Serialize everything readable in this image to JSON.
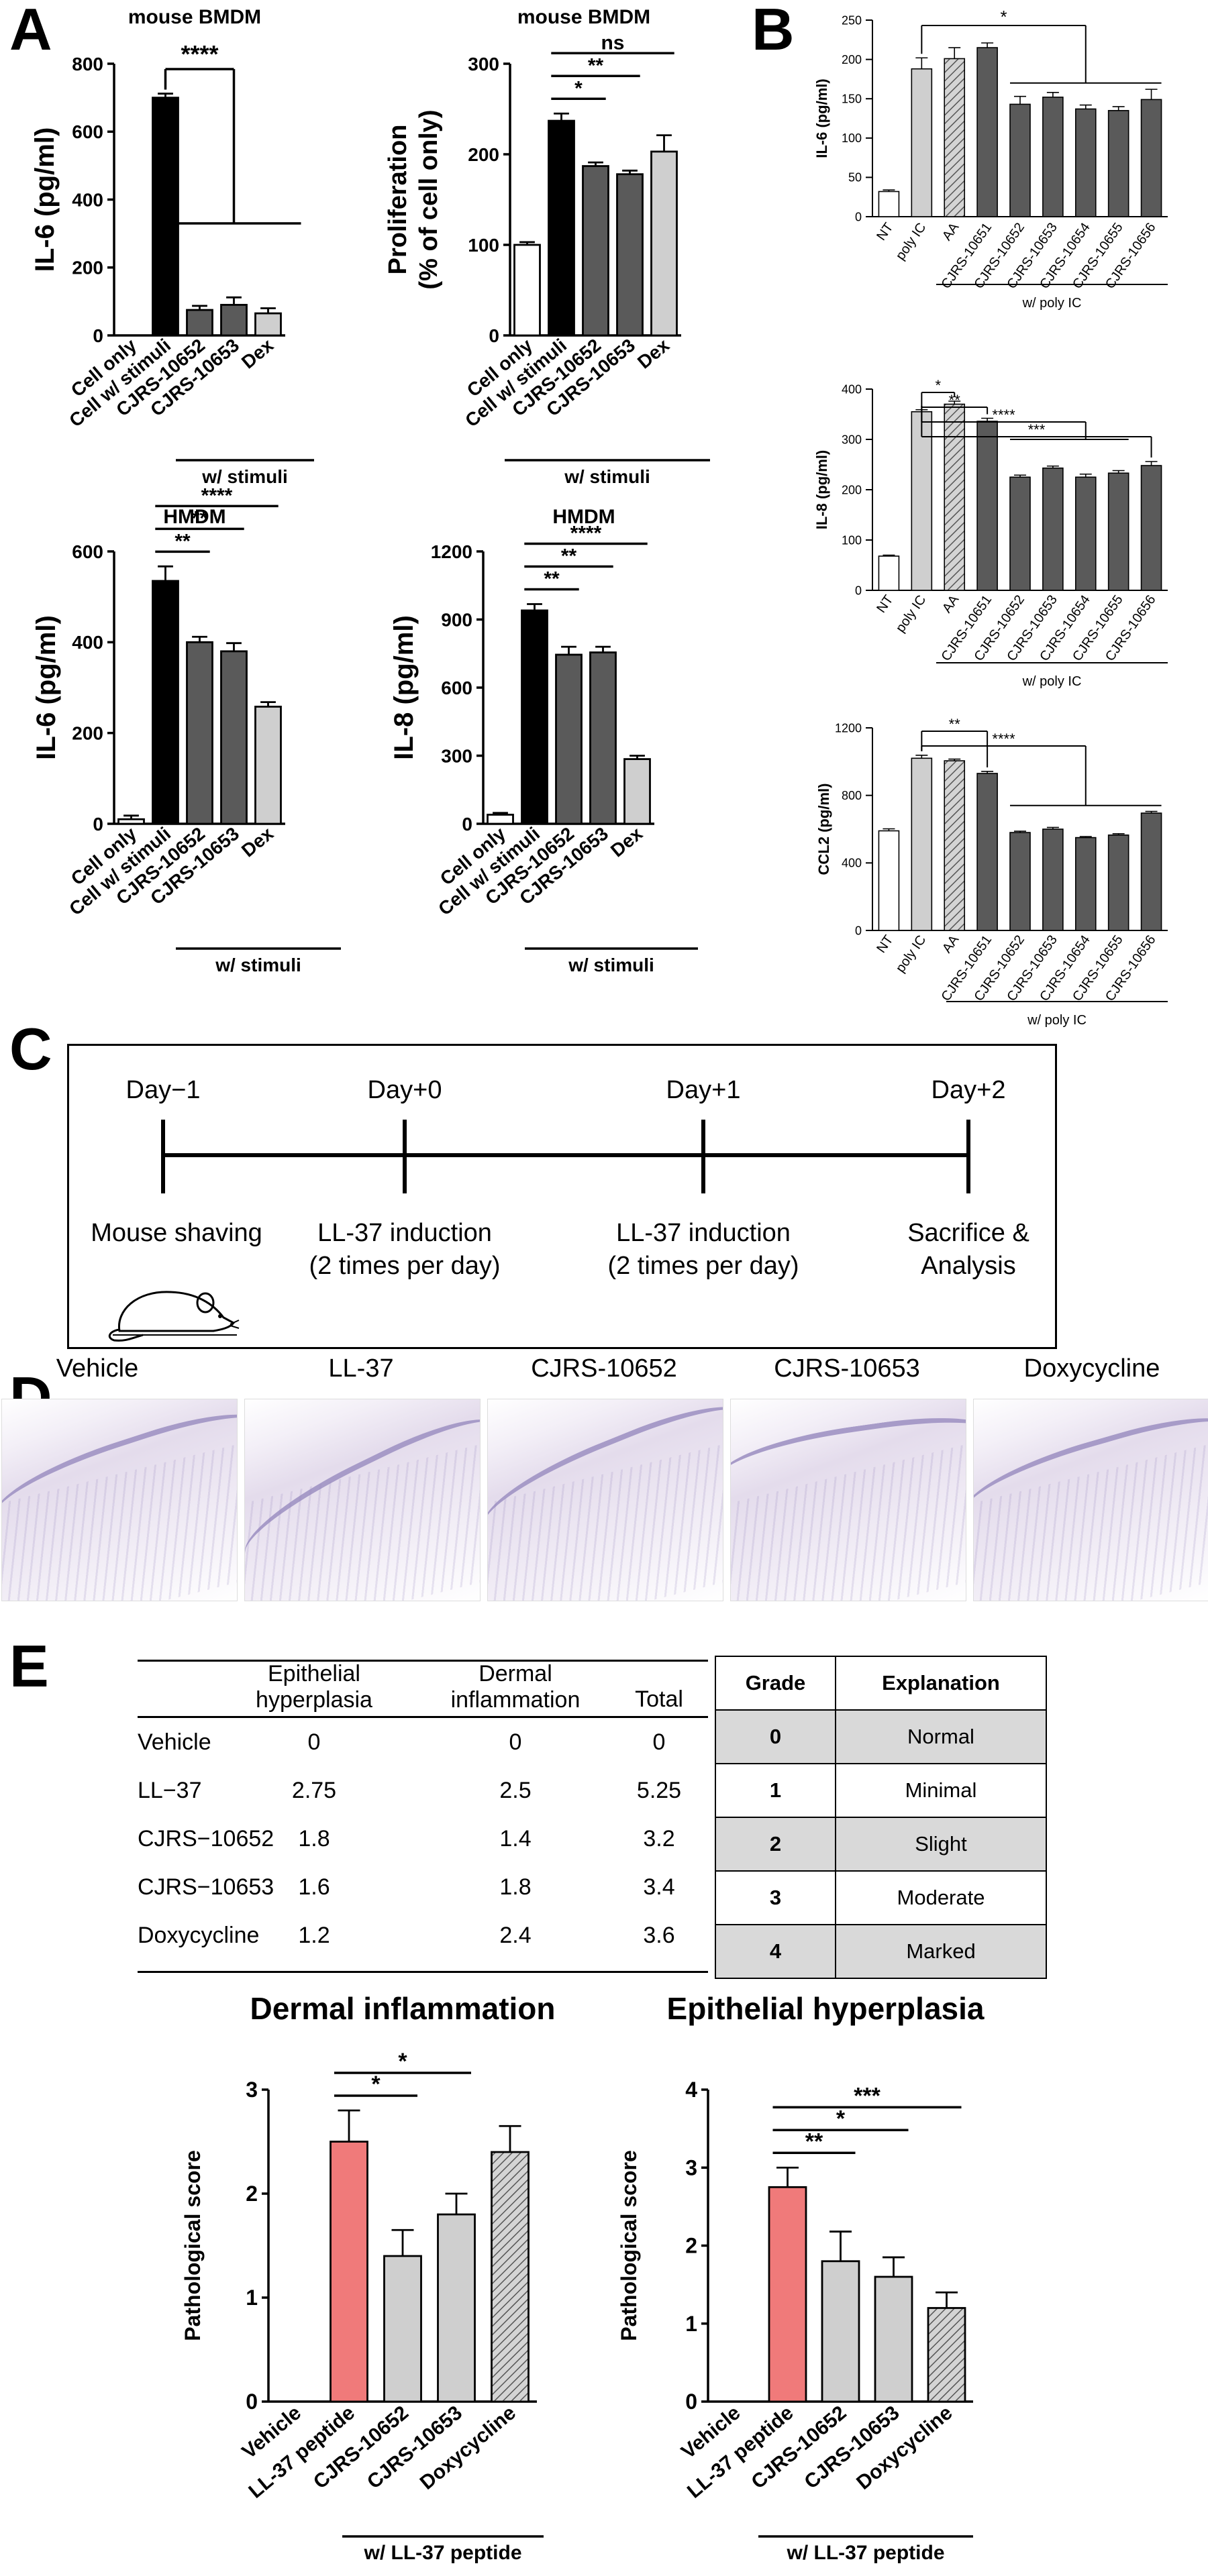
{
  "panels": {
    "a": "A",
    "b": "B",
    "c": "C",
    "d": "D",
    "e": "E"
  },
  "colors": {
    "black": "#000000",
    "dark_gray": "#5a5a5a",
    "light_gray": "#cfcfcf",
    "white": "#ffffff",
    "salmon": "#f07a7a",
    "hatch": "#bdbdbd"
  },
  "chart_data": [
    {
      "id": "a1",
      "type": "bar",
      "title": "mouse BMDM",
      "ylabel": "IL-6 (pg/ml)",
      "ylim": [
        0,
        800
      ],
      "yticks": [
        0,
        200,
        400,
        600,
        800
      ],
      "categories": [
        "Cell only",
        "Cell w/ stimuli",
        "CJRS-10652",
        "CJRS-10653",
        "Dex"
      ],
      "values": [
        0,
        700,
        75,
        90,
        65
      ],
      "errors": [
        0,
        12,
        12,
        22,
        15
      ],
      "fills": [
        "white",
        "black",
        "dark_gray",
        "dark_gray",
        "light_gray"
      ],
      "group_label": "w/ stimuli",
      "significance": [
        {
          "label": "****",
          "from": 1,
          "to": [
            2,
            4
          ]
        }
      ]
    },
    {
      "id": "a2",
      "type": "bar",
      "title": "mouse BMDM",
      "ylabel": "Proliferation (% of cell only)",
      "ylabel_lines": [
        "Proliferation",
        "(% of cell only)"
      ],
      "ylim": [
        0,
        300
      ],
      "yticks": [
        0,
        100,
        200,
        300
      ],
      "categories": [
        "Cell only",
        "Cell w/ stimuli",
        "CJRS-10652",
        "CJRS-10653",
        "Dex"
      ],
      "values": [
        100,
        237,
        187,
        178,
        203
      ],
      "errors": [
        3,
        8,
        4,
        4,
        18
      ],
      "fills": [
        "white",
        "black",
        "dark_gray",
        "dark_gray",
        "light_gray"
      ],
      "group_label": "w/ stimuli",
      "significance": [
        {
          "label": "*",
          "from": 1,
          "to": 2
        },
        {
          "label": "**",
          "from": 1,
          "to": 3
        },
        {
          "label": "ns",
          "from": 1,
          "to": 4
        }
      ]
    },
    {
      "id": "a3",
      "type": "bar",
      "title": "HMDM",
      "ylabel": "IL-6 (pg/ml)",
      "ylim": [
        0,
        600
      ],
      "yticks": [
        0,
        200,
        400,
        600
      ],
      "categories": [
        "Cell only",
        "Cell w/ stimuli",
        "CJRS-10652",
        "CJRS-10653",
        "Dex"
      ],
      "values": [
        10,
        535,
        400,
        380,
        258
      ],
      "errors": [
        8,
        32,
        12,
        18,
        10
      ],
      "fills": [
        "white",
        "black",
        "dark_gray",
        "dark_gray",
        "light_gray"
      ],
      "group_label": "w/ stimuli",
      "significance": [
        {
          "label": "**",
          "from": 1,
          "to": 2
        },
        {
          "label": "**",
          "from": 1,
          "to": 3
        },
        {
          "label": "****",
          "from": 1,
          "to": 4
        }
      ]
    },
    {
      "id": "a4",
      "type": "bar",
      "title": "HMDM",
      "ylabel": "IL-8 (pg/ml)",
      "ylim": [
        0,
        1200
      ],
      "yticks": [
        0,
        300,
        600,
        900,
        1200
      ],
      "categories": [
        "Cell only",
        "Cell w/ stimuli",
        "CJRS-10652",
        "CJRS-10653",
        "Dex"
      ],
      "values": [
        40,
        940,
        745,
        755,
        285
      ],
      "errors": [
        8,
        28,
        35,
        25,
        15
      ],
      "fills": [
        "white",
        "black",
        "dark_gray",
        "dark_gray",
        "light_gray"
      ],
      "group_label": "w/ stimuli",
      "significance": [
        {
          "label": "**",
          "from": 1,
          "to": 2
        },
        {
          "label": "**",
          "from": 1,
          "to": 3
        },
        {
          "label": "****",
          "from": 1,
          "to": 4
        }
      ]
    },
    {
      "id": "b1",
      "type": "bar",
      "ylabel": "IL-6 (pg/ml)",
      "ylim": [
        0,
        250
      ],
      "yticks": [
        0,
        50,
        100,
        150,
        200,
        250
      ],
      "categories": [
        "NT",
        "poly IC",
        "AA",
        "CJRS-10651",
        "CJRS-10652",
        "CJRS-10653",
        "CJRS-10654",
        "CJRS-10655",
        "CJRS-10656"
      ],
      "values": [
        32,
        188,
        201,
        215,
        143,
        152,
        137,
        135,
        149
      ],
      "errors": [
        2,
        14,
        14,
        6,
        10,
        6,
        5,
        5,
        13
      ],
      "fills": [
        "white",
        "light_gray",
        "hatch",
        "dark_gray",
        "dark_gray",
        "dark_gray",
        "dark_gray",
        "dark_gray",
        "dark_gray"
      ],
      "group_label": "w/ poly IC",
      "significance": [
        {
          "label": "*",
          "from": 1,
          "to": [
            4,
            8
          ]
        }
      ]
    },
    {
      "id": "b2",
      "type": "bar",
      "ylabel": "IL-8 (pg/ml)",
      "ylim": [
        0,
        400
      ],
      "yticks": [
        0,
        100,
        200,
        300,
        400
      ],
      "categories": [
        "NT",
        "poly IC",
        "AA",
        "CJRS-10651",
        "CJRS-10652",
        "CJRS-10653",
        "CJRS-10654",
        "CJRS-10655",
        "CJRS-10656"
      ],
      "values": [
        68,
        355,
        370,
        336,
        225,
        243,
        225,
        233,
        248
      ],
      "errors": [
        2,
        4,
        6,
        6,
        4,
        4,
        6,
        5,
        8
      ],
      "fills": [
        "white",
        "light_gray",
        "hatch",
        "dark_gray",
        "dark_gray",
        "dark_gray",
        "dark_gray",
        "dark_gray",
        "dark_gray"
      ],
      "group_label": "w/ poly IC",
      "significance": [
        {
          "label": "*",
          "from": 1,
          "to": 2
        },
        {
          "label": "**",
          "from": 1,
          "to": 3
        },
        {
          "label": "****",
          "from": 1,
          "to": [
            4,
            7
          ]
        },
        {
          "label": "***",
          "from": 1,
          "to": 8
        }
      ]
    },
    {
      "id": "b3",
      "type": "bar",
      "ylabel": "CCL2 (pg/ml)",
      "ylim": [
        0,
        1200
      ],
      "yticks": [
        0,
        400,
        800,
        1200
      ],
      "categories": [
        "NT",
        "poly IC",
        "AA",
        "CJRS-10651",
        "CJRS-10652",
        "CJRS-10653",
        "CJRS-10654",
        "CJRS-10655",
        "CJRS-10656"
      ],
      "values": [
        590,
        1020,
        1005,
        930,
        580,
        600,
        550,
        565,
        695
      ],
      "errors": [
        12,
        18,
        10,
        12,
        8,
        10,
        6,
        8,
        10
      ],
      "fills": [
        "white",
        "light_gray",
        "hatch",
        "dark_gray",
        "dark_gray",
        "dark_gray",
        "dark_gray",
        "dark_gray",
        "dark_gray"
      ],
      "group_label": "w/ poly IC",
      "significance": [
        {
          "label": "**",
          "from": 1,
          "to": 3
        },
        {
          "label": "****",
          "from": 1,
          "to": [
            4,
            8
          ]
        }
      ]
    },
    {
      "id": "e1",
      "type": "bar",
      "title": "Dermal inflammation",
      "ylabel": "Pathological score",
      "ylim": [
        0,
        3
      ],
      "yticks": [
        0,
        1,
        2,
        3
      ],
      "categories": [
        "Vehicle",
        "LL-37 peptide",
        "CJRS-10652",
        "CJRS-10653",
        "Doxycycline"
      ],
      "values": [
        0,
        2.5,
        1.4,
        1.8,
        2.4
      ],
      "errors": [
        0,
        0.3,
        0.25,
        0.2,
        0.25
      ],
      "fills": [
        "white",
        "salmon",
        "light_gray",
        "light_gray",
        "hatch"
      ],
      "group_label": "w/ LL-37 peptide",
      "significance": [
        {
          "label": "*",
          "from": 1,
          "to": 2
        },
        {
          "label": "*",
          "from": 1,
          "to": 3
        }
      ]
    },
    {
      "id": "e2",
      "type": "bar",
      "title": "Epithelial hyperplasia",
      "ylabel": "Pathological score",
      "ylim": [
        0,
        4
      ],
      "yticks": [
        0,
        1,
        2,
        3,
        4
      ],
      "categories": [
        "Vehicle",
        "LL-37 peptide",
        "CJRS-10652",
        "CJRS-10653",
        "Doxycycline"
      ],
      "values": [
        0,
        2.75,
        1.8,
        1.6,
        1.2
      ],
      "errors": [
        0,
        0.25,
        0.38,
        0.25,
        0.2
      ],
      "fills": [
        "white",
        "salmon",
        "light_gray",
        "light_gray",
        "hatch"
      ],
      "group_label": "w/ LL-37 peptide",
      "significance": [
        {
          "label": "**",
          "from": 1,
          "to": 2
        },
        {
          "label": "*",
          "from": 1,
          "to": 3
        },
        {
          "label": "***",
          "from": 1,
          "to": 4
        }
      ]
    }
  ],
  "timeline": {
    "days": [
      "Day−1",
      "Day+0",
      "Day+1",
      "Day+2"
    ],
    "events": [
      "Mouse shaving",
      "LL-37 induction\n(2 times per day)",
      "LL-37 induction\n(2 times per day)",
      "Sacrifice &\nAnalysis"
    ]
  },
  "histology": [
    "Vehicle",
    "LL-37",
    "CJRS-10652",
    "CJRS-10653",
    "Doxycycline"
  ],
  "score_table": {
    "headers": [
      "",
      "Epithelial\nhyperplasia",
      "Dermal\ninflammation",
      "Total"
    ],
    "rows": [
      [
        "Vehicle",
        "0",
        "0",
        "0"
      ],
      [
        "LL−37",
        "2.75",
        "2.5",
        "5.25"
      ],
      [
        "CJRS−10652",
        "1.8",
        "1.4",
        "3.2"
      ],
      [
        "CJRS−10653",
        "1.6",
        "1.8",
        "3.4"
      ],
      [
        "Doxycycline",
        "1.2",
        "2.4",
        "3.6"
      ]
    ]
  },
  "grade_table": {
    "headers": [
      "Grade",
      "Explanation"
    ],
    "rows": [
      [
        "0",
        "Normal"
      ],
      [
        "1",
        "Minimal"
      ],
      [
        "2",
        "Slight"
      ],
      [
        "3",
        "Moderate"
      ],
      [
        "4",
        "Marked"
      ]
    ]
  }
}
